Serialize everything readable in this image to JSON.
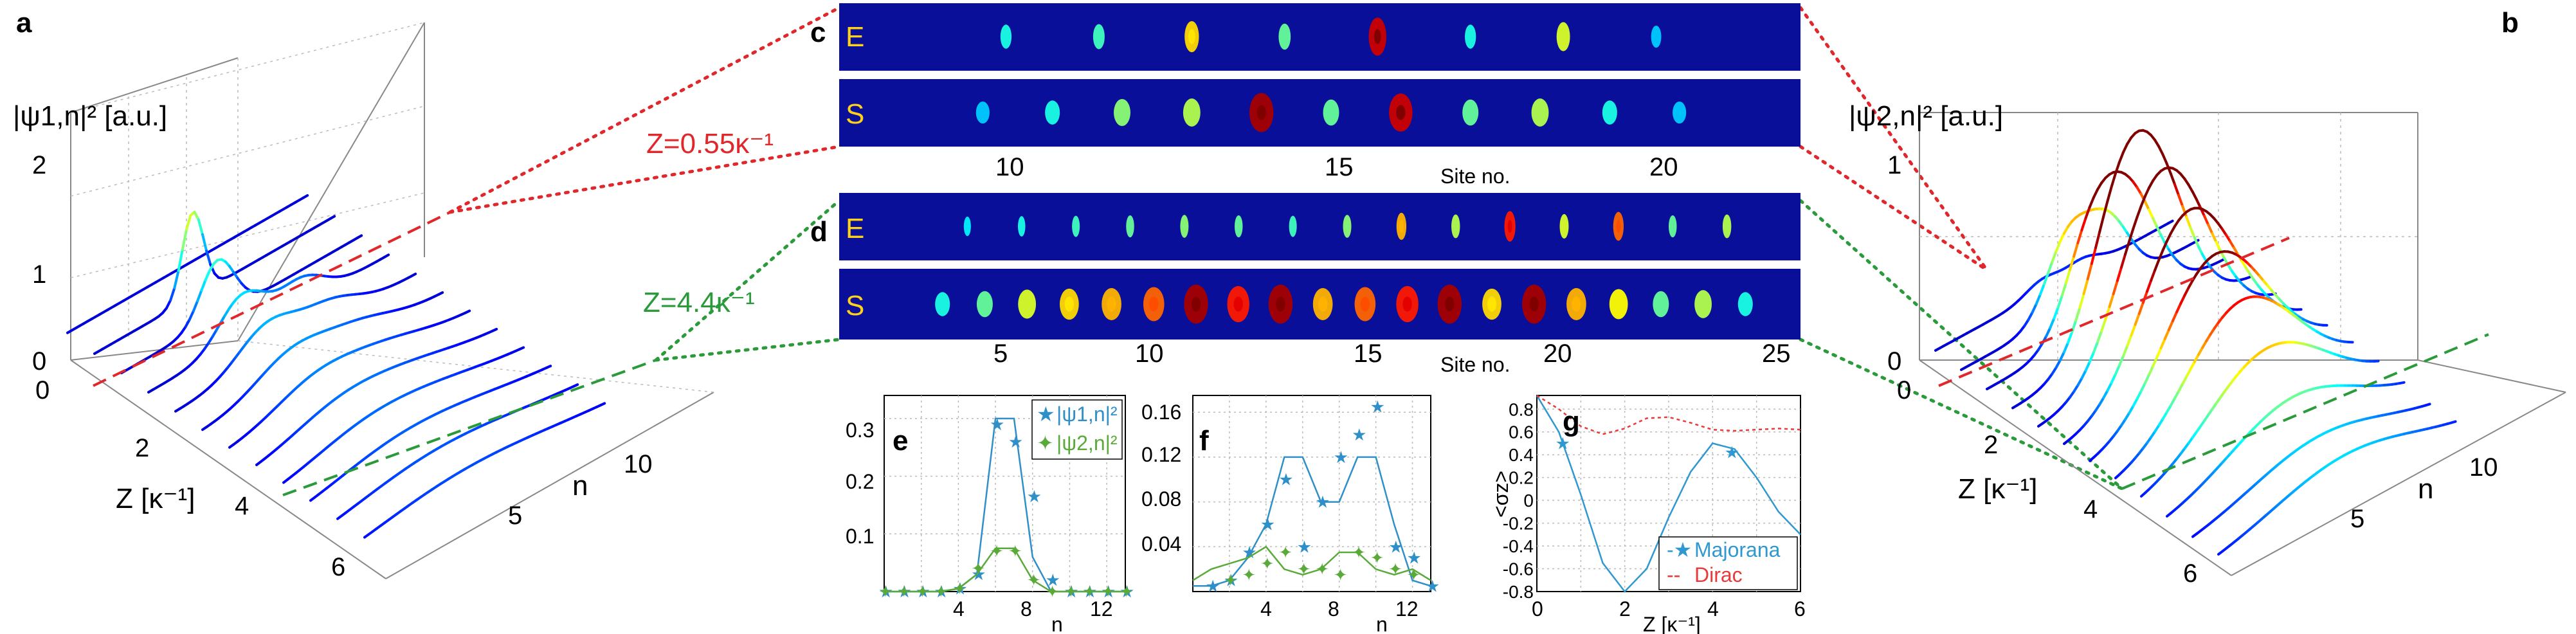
{
  "colors": {
    "strip_bg": "#0a0f9a",
    "zline_small": "#e0282c",
    "zline_large": "#2a9a3a",
    "psi1": "#2f8fc8",
    "psi2": "#5aaa3a",
    "majorana": "#2f98d0",
    "dirac": "#e83a3a",
    "strip_label": "#ffd21a"
  },
  "panel_labels": {
    "a": "a",
    "b": "b",
    "c": "c",
    "d": "d",
    "e": "e",
    "f": "f",
    "g": "g"
  },
  "annotations": {
    "z_small": "Z=0.55κ⁻¹",
    "z_large": "Z=4.4κ⁻¹"
  },
  "strips": {
    "experiment_tag": "E",
    "simulation_tag": "S",
    "c_xlabel": "Site no.",
    "d_xlabel": "Site no."
  },
  "chart_data": [
    {
      "id": "a",
      "type": "waterfall",
      "zlabel": "|ψ1,n|² [a.u.]",
      "xlabel": "Z [κ⁻¹]",
      "ylabel": "n",
      "ztick_labels": [
        "0",
        "1",
        "2"
      ],
      "xtick_labels": [
        "0",
        "2",
        "4",
        "6"
      ],
      "ytick_labels": [
        "5",
        "10"
      ]
    },
    {
      "id": "b",
      "type": "waterfall",
      "zlabel": "|ψ2,n|² [a.u.]",
      "xlabel": "Z [κ⁻¹]",
      "ylabel": "n",
      "ztick_labels": [
        "0",
        "1"
      ],
      "xtick_labels": [
        "0",
        "2",
        "4",
        "6"
      ],
      "ytick_labels": [
        "5",
        "10"
      ]
    },
    {
      "id": "c",
      "type": "heatmap",
      "xlabel": "Site no.",
      "xtick_labels": [
        "10",
        "15",
        "20"
      ],
      "experiment_spots": [
        0.2,
        0.25,
        0.55,
        0.3,
        0.9,
        0.2,
        0.45,
        0.1
      ],
      "simulation_spots": [
        0.1,
        0.2,
        0.35,
        0.4,
        0.95,
        0.3,
        0.9,
        0.3,
        0.4,
        0.2,
        0.1
      ]
    },
    {
      "id": "d",
      "type": "heatmap",
      "xlabel": "Site no.",
      "xtick_labels": [
        "5",
        "10",
        "15",
        "20",
        "25"
      ],
      "experiment_spots": [
        0.15,
        0.2,
        0.25,
        0.3,
        0.35,
        0.3,
        0.25,
        0.35,
        0.6,
        0.4,
        0.8,
        0.45,
        0.7,
        0.3,
        0.4
      ],
      "simulation_spots": [
        0.2,
        0.3,
        0.45,
        0.55,
        0.6,
        0.7,
        0.95,
        0.8,
        0.95,
        0.6,
        0.7,
        0.8,
        0.95,
        0.55,
        0.95,
        0.6,
        0.5,
        0.3,
        0.4,
        0.2
      ]
    },
    {
      "id": "e",
      "type": "line+scatter",
      "xlabel": "n",
      "xlim": [
        0,
        13
      ],
      "ylim": [
        0,
        0.34
      ],
      "xtick_labels": [
        "4",
        "8",
        "12"
      ],
      "ytick_labels": [
        "0.1",
        "0.2",
        "0.3"
      ],
      "legend": [
        "|ψ1,n|²",
        "|ψ2,n|²"
      ],
      "series": [
        {
          "name": "|ψ1,n|²",
          "line_x": [
            0,
            1,
            2,
            3,
            4,
            5,
            6,
            7,
            8,
            9,
            10,
            11,
            12,
            13
          ],
          "line_y": [
            0,
            0,
            0,
            0,
            0.005,
            0.03,
            0.3,
            0.3,
            0.06,
            0,
            0,
            0,
            0,
            0
          ],
          "points_x": [
            0,
            1,
            2,
            3,
            4,
            5,
            6,
            7,
            8,
            9,
            10,
            11,
            12,
            13
          ],
          "points_y": [
            0,
            0,
            0,
            0,
            0.005,
            0.03,
            0.29,
            0.26,
            0.165,
            0.02,
            0,
            0,
            0,
            0
          ]
        },
        {
          "name": "|ψ2,n|²",
          "line_x": [
            0,
            1,
            2,
            3,
            4,
            5,
            6,
            7,
            8,
            9,
            10,
            11,
            12,
            13
          ],
          "line_y": [
            0,
            0,
            0,
            0,
            0.005,
            0.03,
            0.075,
            0.075,
            0.02,
            0,
            0,
            0,
            0,
            0
          ],
          "points_x": [
            0,
            1,
            2,
            3,
            4,
            5,
            6,
            7,
            8,
            9,
            10,
            11,
            12,
            13
          ],
          "points_y": [
            0,
            0,
            0,
            0,
            0.005,
            0.04,
            0.07,
            0.07,
            0.02,
            0,
            0,
            0,
            0,
            0
          ]
        }
      ]
    },
    {
      "id": "f",
      "type": "line+scatter",
      "xlabel": "n",
      "xlim": [
        0,
        13
      ],
      "ylim": [
        0,
        0.175
      ],
      "xtick_labels": [
        "4",
        "8",
        "12"
      ],
      "ytick_labels": [
        "0.04",
        "0.08",
        "0.12",
        "0.16"
      ],
      "series": [
        {
          "name": "|ψ1,n|²",
          "line_x": [
            0,
            1,
            2,
            3,
            4,
            5,
            6,
            7,
            8,
            9,
            10,
            11,
            12,
            13
          ],
          "line_y": [
            0.005,
            0.005,
            0.01,
            0.03,
            0.06,
            0.12,
            0.12,
            0.08,
            0.08,
            0.12,
            0.12,
            0.06,
            0.01,
            0.005
          ],
          "points_x": [
            1,
            2,
            3,
            4,
            5,
            6,
            7,
            8,
            9,
            10,
            11,
            12,
            13
          ],
          "points_y": [
            0.005,
            0.01,
            0.035,
            0.06,
            0.1,
            0.04,
            0.08,
            0.12,
            0.14,
            0.165,
            0.04,
            0.03,
            0.005
          ]
        },
        {
          "name": "|ψ2,n|²",
          "line_x": [
            0,
            1,
            2,
            3,
            4,
            5,
            6,
            7,
            8,
            9,
            10,
            11,
            12,
            13
          ],
          "line_y": [
            0.01,
            0.02,
            0.025,
            0.03,
            0.04,
            0.02,
            0.015,
            0.02,
            0.035,
            0.035,
            0.02,
            0.015,
            0.02,
            0.01
          ],
          "points_x": [
            2,
            3,
            4,
            5,
            6,
            7,
            8,
            9,
            10,
            11,
            12
          ],
          "points_y": [
            0.01,
            0.015,
            0.025,
            0.035,
            0.02,
            0.02,
            0.015,
            0.035,
            0.03,
            0.02,
            0.015
          ]
        }
      ]
    },
    {
      "id": "g",
      "type": "line+scatter",
      "xlabel": "Z [κ⁻¹]",
      "ylabel": "<σz>",
      "xlim": [
        0,
        6
      ],
      "ylim": [
        -0.8,
        0.92
      ],
      "xtick_labels": [
        "0",
        "2",
        "4",
        "6"
      ],
      "ytick_labels": [
        "-0.8",
        "-0.6",
        "-0.4",
        "-0.2",
        "0",
        "0.2",
        "0.4",
        "0.6",
        "0.8"
      ],
      "legend": [
        "Majorana",
        "Dirac"
      ],
      "series": [
        {
          "name": "Majorana",
          "line_x": [
            0,
            0.5,
            1,
            1.5,
            2,
            2.5,
            3,
            3.5,
            4,
            4.5,
            5,
            5.5,
            6
          ],
          "line_y": [
            0.92,
            0.6,
            0.05,
            -0.55,
            -0.8,
            -0.6,
            -0.15,
            0.25,
            0.5,
            0.45,
            0.2,
            -0.1,
            -0.3
          ],
          "points_x": [
            0.55,
            4.4
          ],
          "points_y": [
            0.5,
            0.42
          ]
        },
        {
          "name": "Dirac",
          "line_x": [
            0,
            0.5,
            1,
            1.5,
            2,
            2.5,
            3,
            3.5,
            4,
            4.5,
            5,
            5.5,
            6
          ],
          "line_y": [
            0.92,
            0.8,
            0.65,
            0.58,
            0.63,
            0.72,
            0.73,
            0.68,
            0.62,
            0.61,
            0.62,
            0.63,
            0.62
          ]
        }
      ]
    }
  ]
}
